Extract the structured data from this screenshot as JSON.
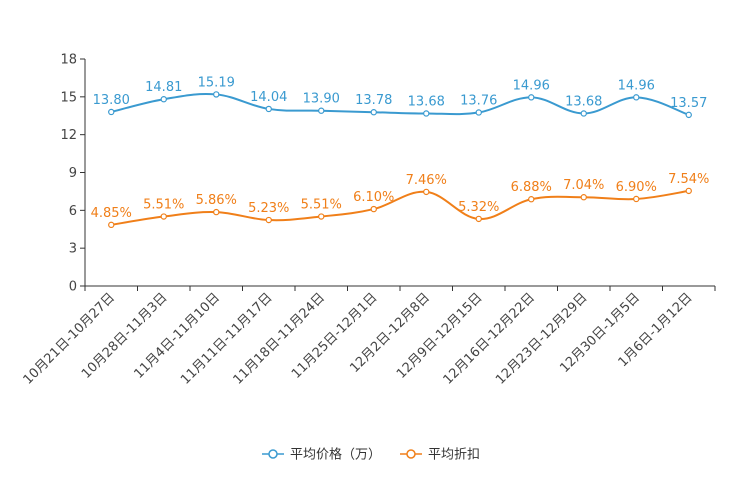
{
  "chart_data": {
    "type": "line",
    "title": "",
    "xlabel": "",
    "ylabel": "",
    "ylim": [
      0,
      18
    ],
    "yticks": [
      0,
      3,
      6,
      9,
      12,
      15,
      18
    ],
    "grid": false,
    "legend": "bottom-center",
    "categories": [
      "10月21日-10月27日",
      "10月28日-11月3日",
      "11月4日-11月10日",
      "11月11日-11月17日",
      "11月18日-11月24日",
      "11月25日-12月1日",
      "12月2日-12月8日",
      "12月9日-12月15日",
      "12月16日-12月22日",
      "12月23日-12月29日",
      "12月30日-1月5日",
      "1月6日-1月12日"
    ],
    "series": [
      {
        "name": "平均价格（万）",
        "color": "#3a9ad0",
        "values": [
          13.8,
          14.81,
          15.19,
          14.04,
          13.9,
          13.78,
          13.68,
          13.76,
          14.96,
          13.68,
          14.96,
          13.57
        ],
        "labels": [
          "13.80",
          "14.81",
          "15.19",
          "14.04",
          "13.90",
          "13.78",
          "13.68",
          "13.76",
          "14.96",
          "13.68",
          "14.96",
          "13.57"
        ]
      },
      {
        "name": "平均折扣",
        "color": "#f07f19",
        "values": [
          4.85,
          5.51,
          5.86,
          5.23,
          5.51,
          6.1,
          7.46,
          5.32,
          6.88,
          7.04,
          6.9,
          7.54
        ],
        "labels": [
          "4.85%",
          "5.51%",
          "5.86%",
          "5.23%",
          "5.51%",
          "6.10%",
          "7.46%",
          "5.32%",
          "6.88%",
          "7.04%",
          "6.90%",
          "7.54%"
        ]
      }
    ]
  }
}
